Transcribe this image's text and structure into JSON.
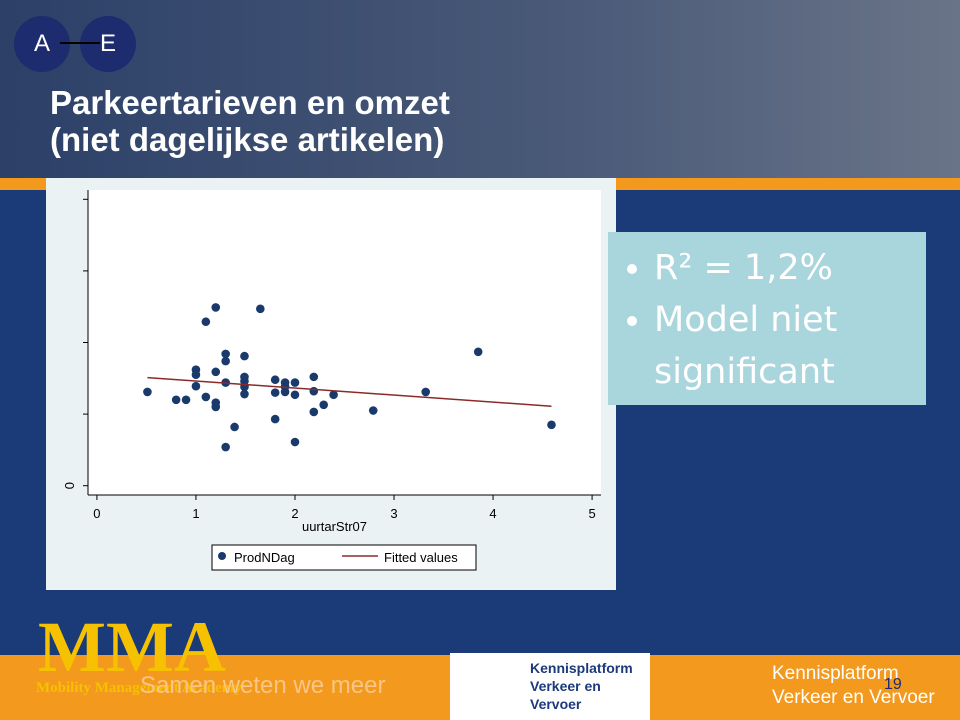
{
  "slide": {
    "badge_left": "A",
    "badge_right": "E",
    "title_lines": [
      "Parkeertarieven en omzet",
      "(niet dagelijkse artikelen)"
    ],
    "bullets": [
      "R² = 1,2%",
      "Model niet significant"
    ],
    "footer_logo_big": "MMA",
    "footer_logo_sub": "Mobility Management Academy",
    "footer_slogan": "Samen weten we meer",
    "center_logo_lines": [
      "Kennisplatform",
      "Verkeer en Vervoer"
    ],
    "right_logo_lines": [
      "Kennisplatform",
      "Verkeer en Vervoer"
    ],
    "page_number": "19"
  },
  "chart_data": {
    "type": "scatter",
    "x_label": "uurtarStr07",
    "xlim": [
      -0.09,
      5.09
    ],
    "xticks": [
      0,
      1,
      2,
      3,
      4,
      5
    ],
    "ylim": [
      -0.13,
      4.13
    ],
    "yticks": [
      0
    ],
    "yminor_ticks": [
      1,
      2,
      3,
      4
    ],
    "legend": "bottom",
    "series": [
      {
        "name": "ProdNDag",
        "type": "scatter",
        "color": "#1a3a6b",
        "x": [
          0.51,
          0.8,
          0.9,
          1.0,
          1.0,
          1.0,
          1.1,
          1.1,
          1.2,
          1.2,
          1.2,
          1.2,
          1.3,
          1.3,
          1.3,
          1.3,
          1.39,
          1.49,
          1.49,
          1.49,
          1.49,
          1.49,
          1.65,
          1.8,
          1.8,
          1.8,
          1.9,
          1.9,
          1.9,
          2.0,
          2.0,
          2.0,
          2.19,
          2.19,
          2.19,
          2.29,
          2.39,
          2.79,
          3.32,
          3.85,
          4.59
        ],
        "values": [
          1.31,
          1.2,
          1.2,
          1.62,
          1.55,
          1.39,
          2.29,
          1.24,
          2.49,
          1.59,
          1.16,
          1.1,
          1.84,
          1.74,
          1.44,
          0.54,
          0.82,
          1.81,
          1.52,
          1.46,
          1.38,
          1.28,
          2.47,
          1.48,
          1.3,
          0.93,
          1.44,
          1.38,
          1.31,
          1.44,
          1.27,
          0.61,
          1.52,
          1.32,
          1.03,
          1.13,
          1.27,
          1.05,
          1.31,
          1.87,
          0.85
        ]
      },
      {
        "name": "Fitted values",
        "type": "line",
        "color": "#8b2a2a",
        "x": [
          0.51,
          4.59
        ],
        "values": [
          1.51,
          1.11
        ]
      }
    ]
  }
}
